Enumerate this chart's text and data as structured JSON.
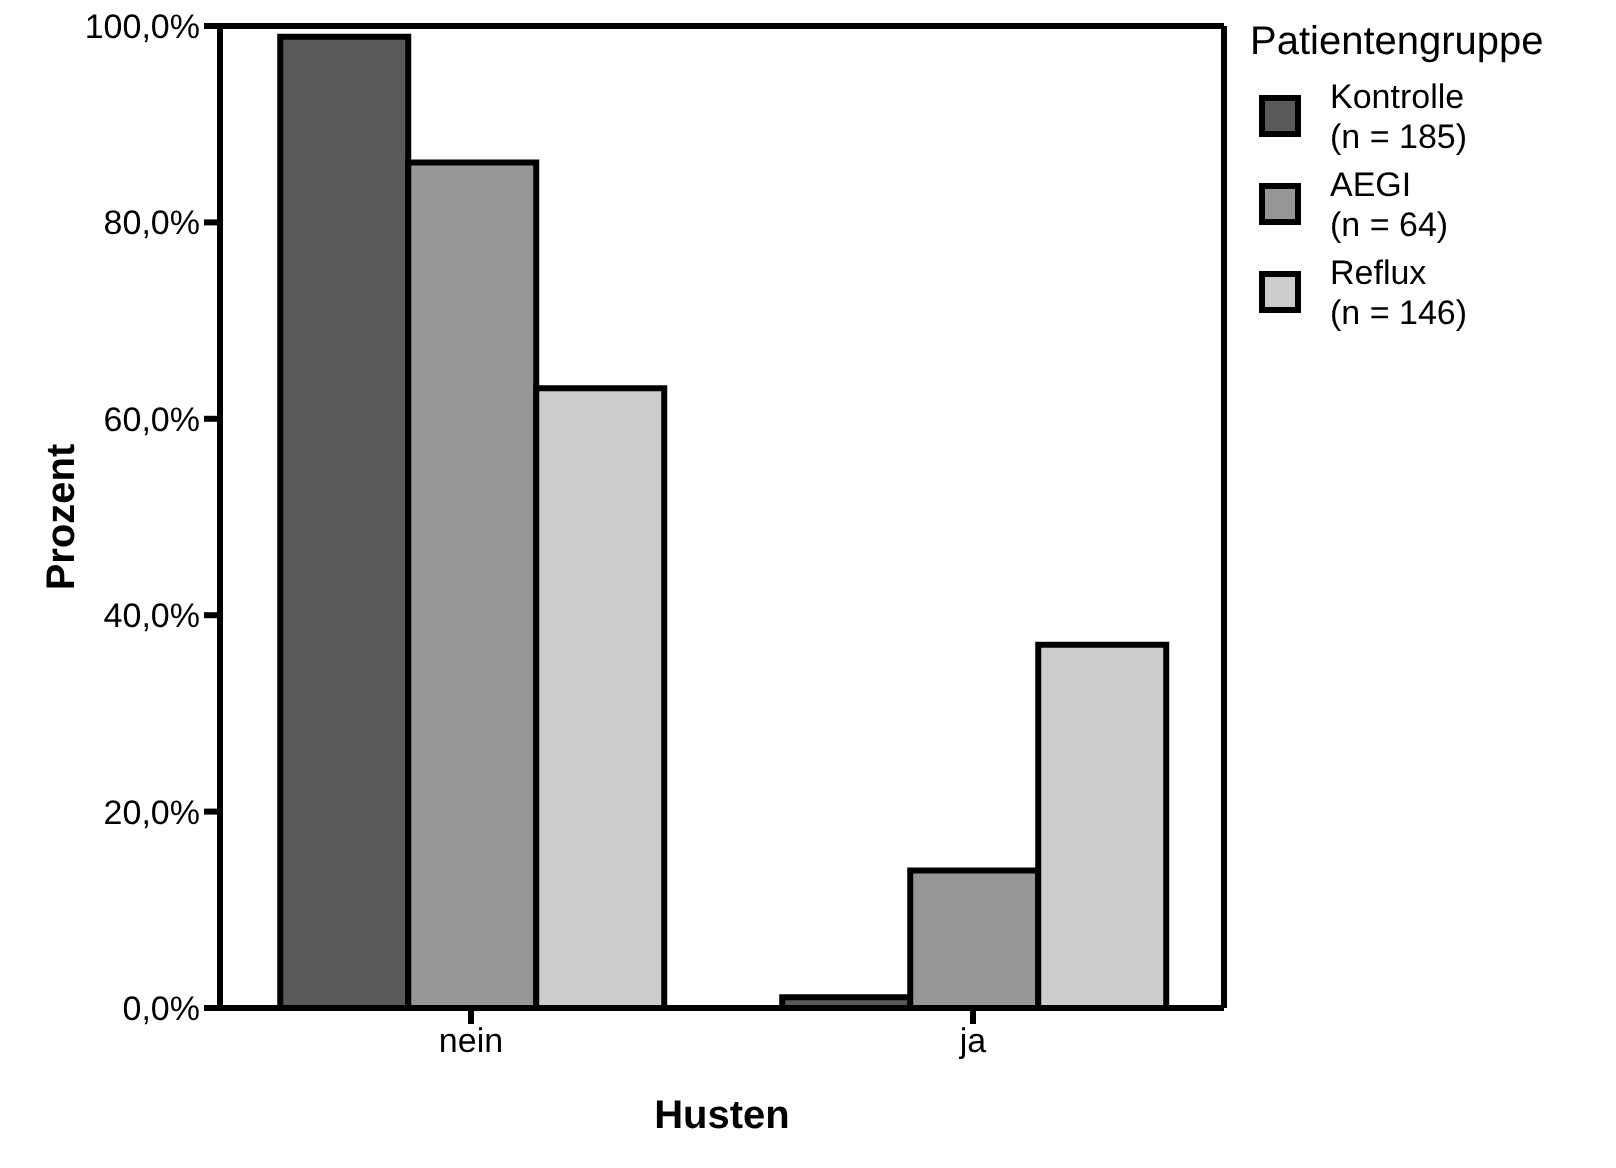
{
  "chart_data": {
    "type": "bar",
    "xlabel": "Husten",
    "ylabel": "Prozent",
    "legend_title": "Patientengruppe",
    "categories": [
      "nein",
      "ja"
    ],
    "series": [
      {
        "name": "Kontrolle\n(n = 185)",
        "color": "#595959",
        "values": [
          98.9,
          1.1
        ]
      },
      {
        "name": "AEGI\n(n = 64)",
        "color": "#969696",
        "values": [
          86.1,
          14.0
        ]
      },
      {
        "name": "Reflux\n(n = 146)",
        "color": "#cccccc",
        "values": [
          63.1,
          37.0
        ]
      }
    ],
    "ylim": [
      0,
      100
    ],
    "yticks": [
      {
        "value": 0,
        "label": "0,0%"
      },
      {
        "value": 20,
        "label": "20,0%"
      },
      {
        "value": 40,
        "label": "40,0%"
      },
      {
        "value": 60,
        "label": "60,0%"
      },
      {
        "value": 80,
        "label": "80,0%"
      },
      {
        "value": 100,
        "label": "100,0%"
      }
    ],
    "grid": false,
    "legend": "right"
  }
}
